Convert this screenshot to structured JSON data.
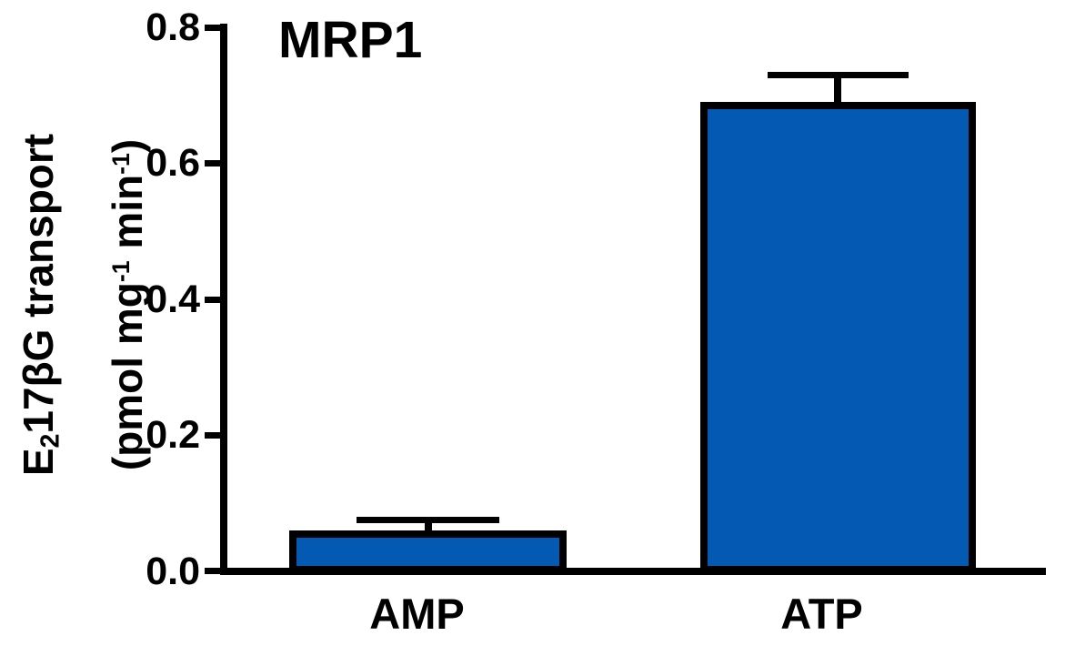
{
  "chart_data": {
    "type": "bar",
    "title": "MRP1",
    "categories": [
      "AMP",
      "ATP"
    ],
    "values": [
      0.06,
      0.69
    ],
    "errors_plus": [
      0.015,
      0.04
    ],
    "error_style": "upper cap with stem",
    "yticks": [
      "0.0",
      "0.2",
      "0.4",
      "0.6",
      "0.8"
    ],
    "ylim": [
      0,
      0.8
    ],
    "ylabel_line1": {
      "base": "E",
      "sub": "2",
      "rest": "17βG transport"
    },
    "ylabel_line2": {
      "p1": "(pmol mg",
      "sup1": "-1",
      "p2": " min",
      "sup2": "-1",
      "p3": ")"
    },
    "xlabel": "",
    "bar_fill_color": "#0459B2",
    "bar_border_color": "#000000",
    "axis_color": "#000000",
    "background_color": "#FFFFFF",
    "grid": false,
    "legend": false
  }
}
